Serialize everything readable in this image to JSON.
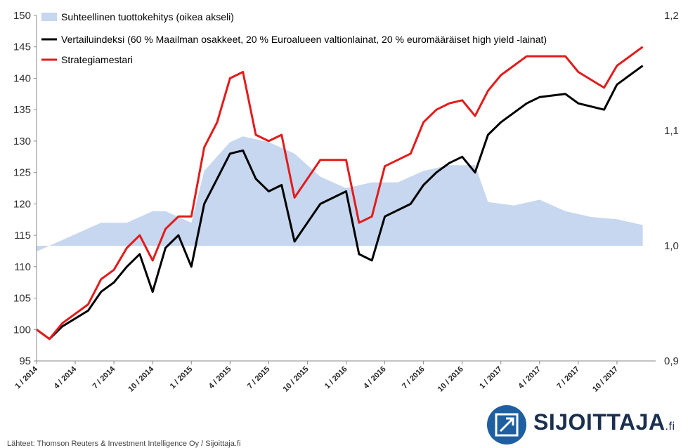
{
  "chart_data": {
    "type": "line",
    "title": "",
    "xlabel": "",
    "ylabel": "",
    "left_axis": {
      "ylim": [
        95,
        150
      ],
      "ticks": [
        95,
        100,
        105,
        110,
        115,
        120,
        125,
        130,
        135,
        140,
        145,
        150
      ]
    },
    "right_axis": {
      "ylim": [
        0.9,
        1.2
      ],
      "ticks": [
        "0,9",
        "1,0",
        "1,1",
        "1,2"
      ]
    },
    "x_range": [
      "1 / 2014",
      "1 / 2018"
    ],
    "x_tick_labels": [
      "1 / 2014",
      "4 / 2014",
      "7 / 2014",
      "10 / 2014",
      "1 / 2015",
      "4 / 2015",
      "7 / 2015",
      "10 / 2015",
      "1 / 2016",
      "4 / 2016",
      "7 / 2016",
      "10 / 2016",
      "1 / 2017",
      "4 / 2017",
      "7 / 2017",
      "10 / 2017"
    ],
    "legend_position": "top-left",
    "grid": false,
    "series": [
      {
        "name": "Suhteellinen tuottokehitys (oikea akseli)",
        "type": "area",
        "axis": "right",
        "baseline": 1.0,
        "color": "#c6d7ef",
        "x": [
          "2014-01",
          "2014-03",
          "2014-05",
          "2014-06",
          "2014-08",
          "2014-10",
          "2014-11",
          "2015-01",
          "2015-02",
          "2015-04",
          "2015-05",
          "2015-07",
          "2015-09",
          "2015-11",
          "2016-01",
          "2016-03",
          "2016-05",
          "2016-07",
          "2016-09",
          "2016-11",
          "2016-12",
          "2017-02",
          "2017-04",
          "2017-06",
          "2017-08",
          "2017-10",
          "2017-12"
        ],
        "values": [
          0.995,
          1.005,
          1.015,
          1.02,
          1.02,
          1.03,
          1.03,
          1.02,
          1.065,
          1.09,
          1.095,
          1.09,
          1.08,
          1.06,
          1.05,
          1.055,
          1.055,
          1.065,
          1.07,
          1.07,
          1.038,
          1.035,
          1.04,
          1.03,
          1.025,
          1.023,
          1.018
        ]
      },
      {
        "name": "Vertailuindeksi (60 % Maailman osakkeet, 20 % Euroalueen valtionlainat, 20 % euromääräiset high yield -lainat)",
        "type": "line",
        "axis": "left",
        "color": "#000000",
        "x": [
          "2014-01",
          "2014-02",
          "2014-03",
          "2014-05",
          "2014-06",
          "2014-07",
          "2014-08",
          "2014-09",
          "2014-10",
          "2014-11",
          "2014-12",
          "2015-01",
          "2015-02",
          "2015-03",
          "2015-04",
          "2015-05",
          "2015-06",
          "2015-07",
          "2015-08",
          "2015-09",
          "2015-10",
          "2015-11",
          "2016-01",
          "2016-02",
          "2016-03",
          "2016-04",
          "2016-06",
          "2016-07",
          "2016-08",
          "2016-09",
          "2016-10",
          "2016-11",
          "2016-12",
          "2017-01",
          "2017-03",
          "2017-04",
          "2017-06",
          "2017-07",
          "2017-09",
          "2017-10",
          "2017-12"
        ],
        "values": [
          100,
          98.5,
          100.5,
          103,
          106,
          107.5,
          110,
          112,
          106,
          113,
          115,
          110,
          120,
          124,
          128,
          128.5,
          124,
          122,
          123,
          114,
          117,
          120,
          122,
          112,
          111,
          118,
          120,
          123,
          125,
          126.5,
          127.5,
          125,
          131,
          133,
          136,
          137,
          137.5,
          136,
          135,
          139,
          142
        ]
      },
      {
        "name": "Strategiamestari",
        "type": "line",
        "axis": "left",
        "color": "#e31b1b",
        "x": [
          "2014-01",
          "2014-02",
          "2014-03",
          "2014-05",
          "2014-06",
          "2014-07",
          "2014-08",
          "2014-09",
          "2014-10",
          "2014-11",
          "2014-12",
          "2015-01",
          "2015-02",
          "2015-03",
          "2015-04",
          "2015-05",
          "2015-06",
          "2015-07",
          "2015-08",
          "2015-09",
          "2015-10",
          "2015-11",
          "2016-01",
          "2016-02",
          "2016-03",
          "2016-04",
          "2016-06",
          "2016-07",
          "2016-08",
          "2016-09",
          "2016-10",
          "2016-11",
          "2016-12",
          "2017-01",
          "2017-03",
          "2017-04",
          "2017-06",
          "2017-07",
          "2017-09",
          "2017-10",
          "2017-12"
        ],
        "values": [
          100,
          98.5,
          101,
          104,
          108,
          109.5,
          113,
          115,
          111,
          116,
          118,
          118,
          129,
          133,
          140,
          141,
          131,
          130,
          131,
          121,
          124,
          127,
          127,
          117,
          118,
          126,
          128,
          133,
          135,
          136,
          136.5,
          134,
          138,
          140.5,
          143.5,
          143.5,
          143.5,
          141,
          138.5,
          142,
          145
        ]
      }
    ]
  },
  "source_text": "Lähteet: Thomson Reuters & Investment Intelligence Oy / Sijoittaja.fi",
  "logo": {
    "name": "SIJOITTAJA",
    "suffix": ".fi",
    "icon": "arrow-up-right-icon",
    "color": "#1d5fa0"
  }
}
